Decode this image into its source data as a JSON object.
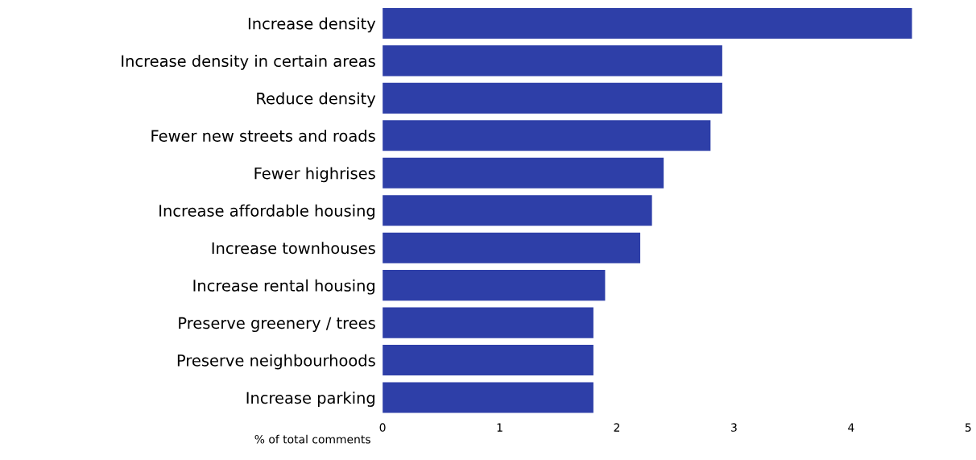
{
  "chart_data": {
    "type": "bar",
    "orientation": "horizontal",
    "xlabel": "% of total comments",
    "categories": [
      "Increase density",
      "Increase density in certain areas",
      "Reduce density",
      "Fewer new streets and roads",
      "Fewer highrises",
      "Increase affordable housing",
      "Increase townhouses",
      "Increase rental housing",
      "Preserve greenery / trees",
      "Preserve neighbourhoods",
      "Increase parking"
    ],
    "values": [
      4.52,
      2.9,
      2.9,
      2.8,
      2.4,
      2.3,
      2.2,
      1.9,
      1.8,
      1.8,
      1.8
    ],
    "color": "#2e3fa8",
    "xlim": [
      0,
      5
    ],
    "xticks": [
      0,
      1,
      2,
      3,
      4,
      5
    ],
    "grid": false
  }
}
